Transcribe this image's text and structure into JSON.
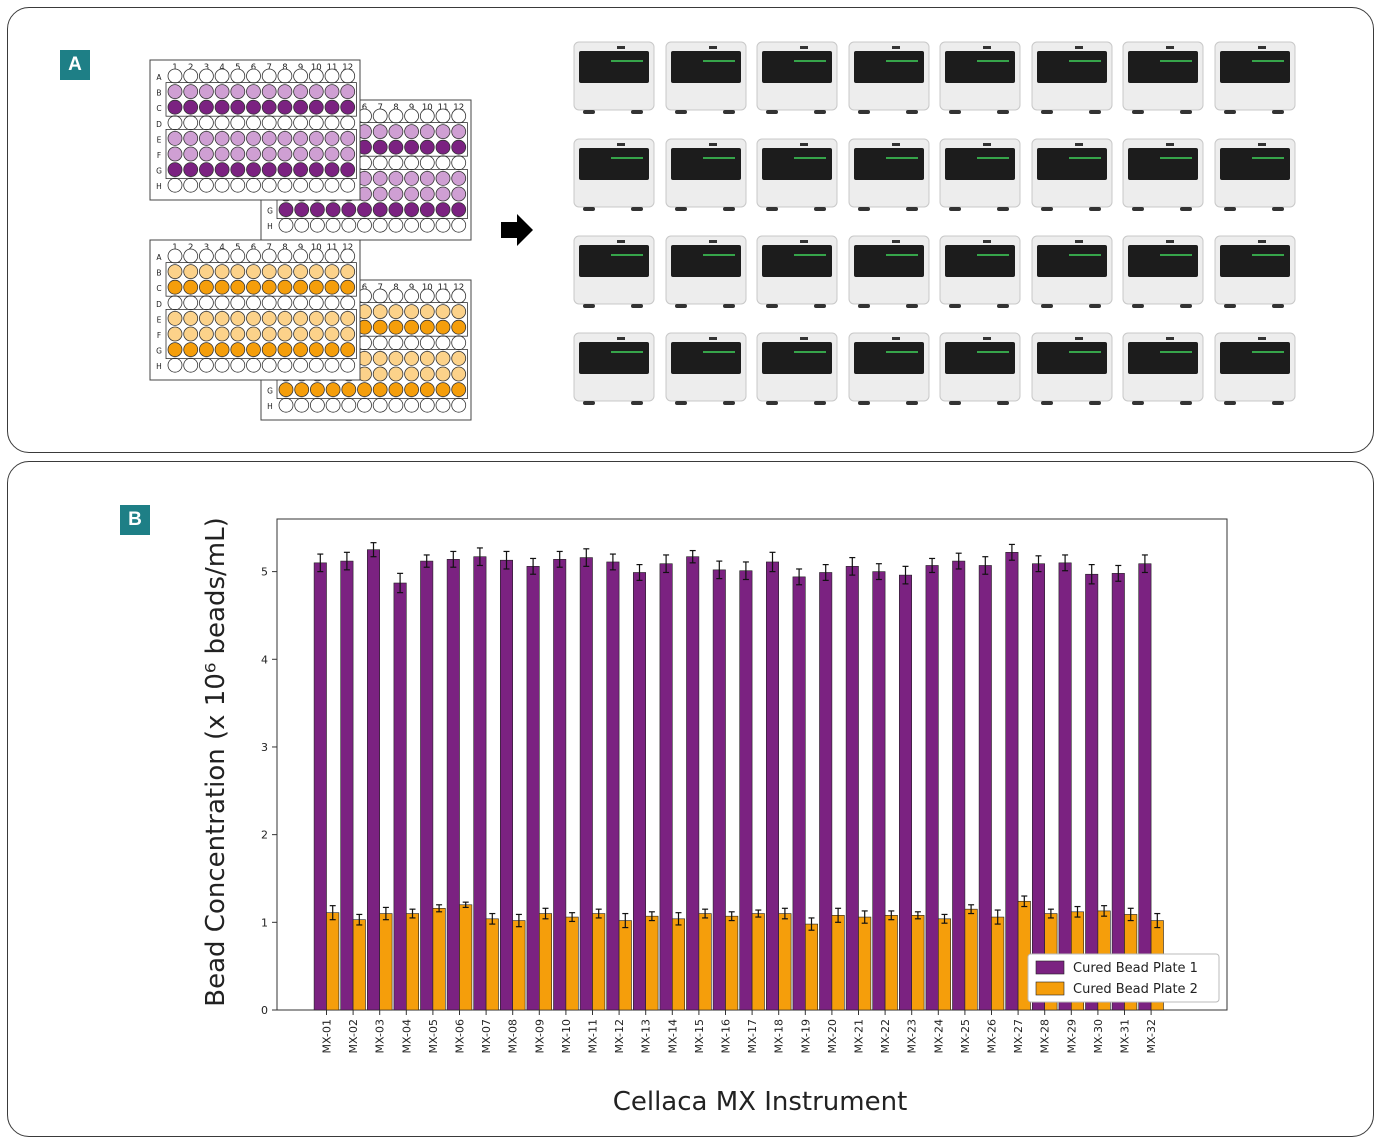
{
  "panel_a": {
    "label": "A",
    "plate_columns": [
      "1",
      "2",
      "3",
      "4",
      "5",
      "6",
      "7",
      "8",
      "9",
      "10",
      "11",
      "12"
    ],
    "plate_rows": [
      "A",
      "B",
      "C",
      "D",
      "E",
      "F",
      "G",
      "H"
    ],
    "back_plate_columns": [
      "6",
      "7",
      "8",
      "9",
      "10",
      "11",
      "12"
    ],
    "back_plate_rows": [
      "G",
      "H"
    ],
    "purple_color": "#7b2281",
    "purple_light": "#cf9fd3",
    "orange_color": "#f59e0b",
    "orange_light": "#fcd28a",
    "instrument_rows": 4,
    "instrument_cols": 8,
    "arrow_icon": "right-arrow-icon"
  },
  "panel_b": {
    "label": "B"
  },
  "chart_data": {
    "type": "bar",
    "xlabel": "Cellaca MX Instrument",
    "ylabel": "Bead Concentration (x 10⁶ beads/mL)",
    "ylim": [
      0,
      5.6
    ],
    "yticks": [
      "0",
      "1",
      "2",
      "3",
      "4",
      "5"
    ],
    "grid": false,
    "legend_position": "bottom-right",
    "categories": [
      "MX-01",
      "MX-02",
      "MX-03",
      "MX-04",
      "MX-05",
      "MX-06",
      "MX-07",
      "MX-08",
      "MX-09",
      "MX-10",
      "MX-11",
      "MX-12",
      "MX-13",
      "MX-14",
      "MX-15",
      "MX-16",
      "MX-17",
      "MX-18",
      "MX-19",
      "MX-20",
      "MX-21",
      "MX-22",
      "MX-23",
      "MX-24",
      "MX-25",
      "MX-26",
      "MX-27",
      "MX-28",
      "MX-29",
      "MX-30",
      "MX-31",
      "MX-32"
    ],
    "series": [
      {
        "name": "Cured Bead Plate 1",
        "color": "#7b2281",
        "values": [
          5.1,
          5.12,
          5.25,
          4.87,
          5.12,
          5.14,
          5.17,
          5.13,
          5.06,
          5.14,
          5.16,
          5.11,
          4.99,
          5.09,
          5.17,
          5.02,
          5.01,
          5.11,
          4.94,
          4.99,
          5.06,
          5.0,
          4.96,
          5.07,
          5.12,
          5.07,
          5.22,
          5.09,
          5.1,
          4.97,
          4.98,
          5.09
        ],
        "errors": [
          0.1,
          0.1,
          0.08,
          0.11,
          0.07,
          0.09,
          0.1,
          0.1,
          0.09,
          0.09,
          0.1,
          0.09,
          0.09,
          0.1,
          0.07,
          0.1,
          0.1,
          0.11,
          0.09,
          0.09,
          0.1,
          0.09,
          0.1,
          0.08,
          0.09,
          0.1,
          0.09,
          0.09,
          0.09,
          0.11,
          0.09,
          0.1
        ]
      },
      {
        "name": "Cured Bead Plate 2",
        "color": "#f59e0b",
        "values": [
          1.11,
          1.03,
          1.1,
          1.1,
          1.16,
          1.2,
          1.04,
          1.02,
          1.1,
          1.06,
          1.1,
          1.02,
          1.07,
          1.04,
          1.1,
          1.07,
          1.1,
          1.1,
          0.98,
          1.08,
          1.06,
          1.08,
          1.08,
          1.04,
          1.15,
          1.06,
          1.24,
          1.1,
          1.12,
          1.13,
          1.09,
          1.02
        ],
        "errors": [
          0.08,
          0.06,
          0.07,
          0.05,
          0.04,
          0.03,
          0.06,
          0.07,
          0.06,
          0.05,
          0.05,
          0.08,
          0.05,
          0.07,
          0.05,
          0.05,
          0.04,
          0.06,
          0.07,
          0.08,
          0.07,
          0.05,
          0.04,
          0.05,
          0.05,
          0.08,
          0.06,
          0.05,
          0.06,
          0.06,
          0.07,
          0.08
        ]
      }
    ]
  }
}
